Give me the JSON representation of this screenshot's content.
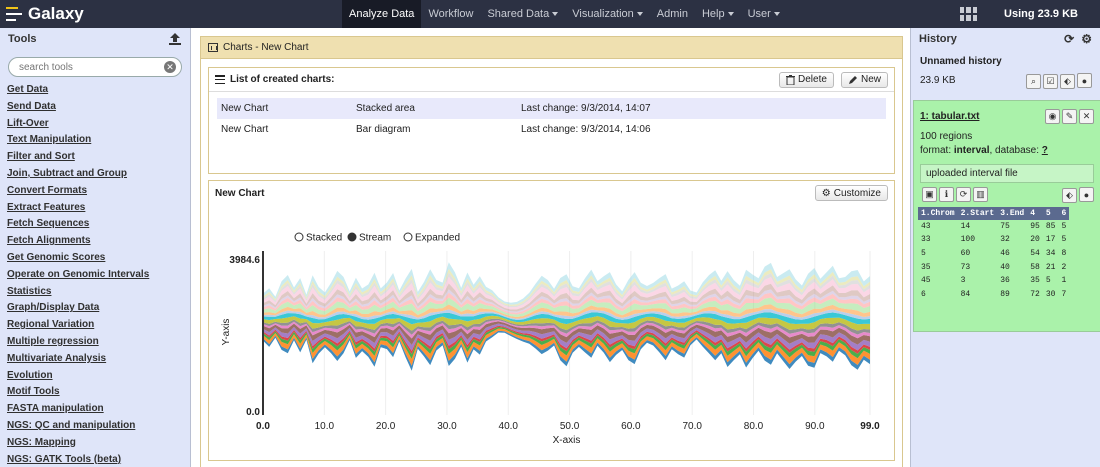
{
  "masthead": {
    "brand": "Galaxy",
    "nav": [
      {
        "label": "Analyze Data",
        "active": true,
        "dropdown": false
      },
      {
        "label": "Workflow",
        "active": false,
        "dropdown": false
      },
      {
        "label": "Shared Data",
        "active": false,
        "dropdown": true
      },
      {
        "label": "Visualization",
        "active": false,
        "dropdown": true
      },
      {
        "label": "Admin",
        "active": false,
        "dropdown": false
      },
      {
        "label": "Help",
        "active": false,
        "dropdown": true
      },
      {
        "label": "User",
        "active": false,
        "dropdown": true
      }
    ],
    "usage": "Using 23.9 KB",
    "grid_icon": "apps-grid-icon"
  },
  "tools": {
    "title": "Tools",
    "upload_icon": "upload-icon",
    "search_placeholder": "search tools",
    "items": [
      "Get Data",
      "Send Data",
      "Lift-Over",
      "Text Manipulation",
      "Filter and Sort",
      "Join, Subtract and Group",
      "Convert Formats",
      "Extract Features",
      "Fetch Sequences",
      "Fetch Alignments",
      "Get Genomic Scores",
      "Operate on Genomic Intervals",
      "Statistics",
      "Graph/Display Data",
      "Regional Variation",
      "Multiple regression",
      "Multivariate Analysis",
      "Evolution",
      "Motif Tools",
      "FASTA manipulation",
      "NGS: QC and manipulation",
      "NGS: Mapping",
      "NGS: GATK Tools (beta)"
    ]
  },
  "center": {
    "frame_title": "Charts - New Chart",
    "list_title": "List of created charts:",
    "delete_label": "Delete",
    "new_label": "New",
    "charts": [
      {
        "name": "New Chart",
        "type": "Stacked area",
        "changed": "Last change: 9/3/2014, 14:07",
        "selected": true
      },
      {
        "name": "New Chart",
        "type": "Bar diagram",
        "changed": "Last change: 9/3/2014, 14:06",
        "selected": false
      }
    ],
    "chart_box_title": "New Chart",
    "customize_label": "Customize",
    "modes": [
      {
        "label": "Stacked",
        "selected": false
      },
      {
        "label": "Stream",
        "selected": true
      },
      {
        "label": "Expanded",
        "selected": false
      }
    ]
  },
  "chart_data": {
    "type": "area",
    "mode": "stream",
    "xlabel": "X-axis",
    "ylabel": "Y-axis",
    "xlim": [
      0,
      99
    ],
    "ylim": [
      0,
      3984.6
    ],
    "x_ticks": [
      "0.0",
      "10.0",
      "20.0",
      "30.0",
      "40.0",
      "50.0",
      "60.0",
      "70.0",
      "80.0",
      "90.0",
      "99.0"
    ],
    "y_ticks": [
      "3984.6",
      "0.0"
    ],
    "series_colors": [
      "#1f77b4",
      "#ff7f0e",
      "#2ca02c",
      "#d62728",
      "#9467bd",
      "#8c564b",
      "#e377c2",
      "#7f7f7f",
      "#bcbd22",
      "#17becf",
      "#aec7e8",
      "#ffbb78",
      "#98df8a",
      "#ff9896",
      "#c5b0d5",
      "#c49c94",
      "#f7b6d2",
      "#c7c7c7",
      "#dbdb8d",
      "#9edae5"
    ],
    "center_line": [
      2500,
      2489,
      2497,
      2539,
      2576,
      2582,
      2548,
      2500,
      2447,
      2419,
      2431,
      2479,
      2530,
      2553,
      2534,
      2483,
      2431,
      2409,
      2431,
      2483,
      2534,
      2553,
      2530,
      2479,
      2431,
      2419,
      2447,
      2500,
      2548,
      2582,
      2576,
      2539,
      2497,
      2489,
      2500,
      2542,
      2577,
      2585,
      2556,
      2500,
      2444,
      2415,
      2425,
      2472,
      2524,
      2556,
      2546,
      2500,
      2449,
      2422,
      2438,
      2489,
      2547,
      2588,
      2596,
      2568,
      2500,
      2436,
      2410,
      2426,
      2474,
      2530,
      2569,
      2574,
      2548,
      2500,
      2453,
      2431,
      2441,
      2481,
      2530,
      2567,
      2573,
      2548,
      2500,
      2451,
      2422,
      2426,
      2462,
      2517,
      2566,
      2590,
      2584,
      2551,
      2500,
      2449,
      2414,
      2408,
      2433,
      2480,
      2531,
      2571,
      2585,
      2568,
      2525,
      2471,
      2429,
      2412,
      2425
    ],
    "total": [
      1200,
      1500,
      1050,
      1750,
      2000,
      1350,
      1900,
      1150,
      2250,
      1700,
      1400,
      1800,
      2300,
      1950,
      1250,
      2050,
      1600,
      1850,
      2400,
      1500,
      1700,
      2150,
      1300,
      2000,
      2600,
      1450,
      1900,
      2450,
      1800,
      1600,
      2650,
      2200,
      1500,
      2300,
      1650,
      2000,
      1400,
      1200,
      900,
      800,
      850,
      950,
      1100,
      1300,
      1650,
      2000,
      1800,
      1450,
      2100,
      2350,
      1700,
      1500,
      1900,
      2250,
      1650,
      1950,
      2300,
      1800,
      1500,
      2050,
      2350,
      1700,
      1450,
      1600,
      1900,
      2200,
      1550,
      1750,
      1950,
      1400,
      1200,
      1650,
      2000,
      2300,
      1850,
      2450,
      2050,
      1750,
      2500,
      2150,
      1850,
      2400,
      2600,
      1950,
      2250,
      2550,
      2100,
      1800,
      2350,
      2550,
      1900,
      2150,
      2450,
      1850,
      2000,
      2400,
      2550,
      2000,
      2250
    ]
  },
  "history": {
    "title": "History",
    "name": "Unnamed history",
    "size": "23.9 KB",
    "dataset": {
      "title": "1: tabular.txt",
      "summary": "100 regions",
      "format_label": "format: ",
      "format_value": "interval",
      "database_label": ", database: ",
      "database_value": "?",
      "info": "uploaded interval file",
      "columns": [
        "1.Chrom",
        "2.Start",
        "3.End",
        "4",
        "5",
        "6"
      ],
      "rows": [
        [
          "43",
          "14",
          "75",
          "95",
          "85",
          "5"
        ],
        [
          "33",
          "100",
          "32",
          "20",
          "17",
          "5"
        ],
        [
          "5",
          "60",
          "46",
          "54",
          "34",
          "8"
        ],
        [
          "35",
          "73",
          "40",
          "58",
          "21",
          "2"
        ],
        [
          "45",
          "3",
          "36",
          "35",
          "5",
          "1"
        ],
        [
          "6",
          "84",
          "89",
          "72",
          "30",
          "7"
        ]
      ]
    }
  }
}
